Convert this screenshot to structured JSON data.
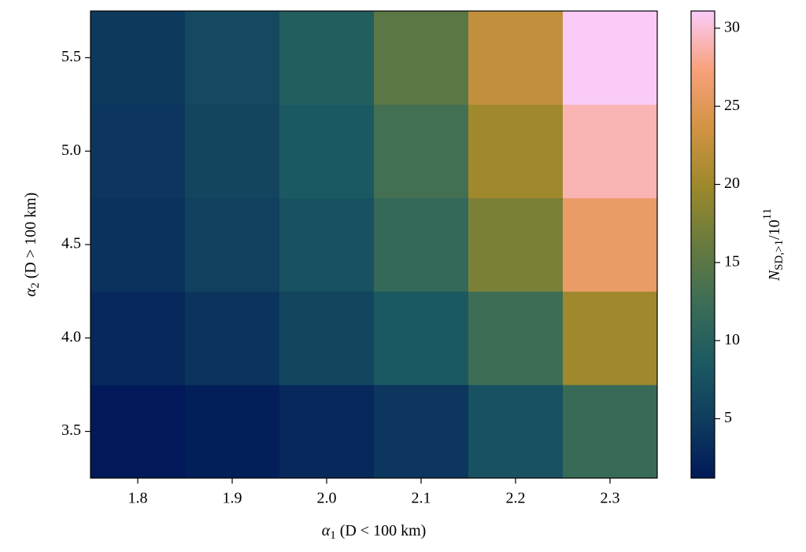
{
  "chart_data": {
    "type": "heatmap",
    "x": [
      1.8,
      1.9,
      2.0,
      2.1,
      2.2,
      2.3
    ],
    "y": [
      3.5,
      4.0,
      4.5,
      5.0,
      5.5
    ],
    "z": [
      [
        1.2,
        1.8,
        2.8,
        4.2,
        7.5,
        12
      ],
      [
        2.8,
        4.0,
        6.0,
        8.5,
        12.5,
        20
      ],
      [
        3.8,
        5.5,
        7.5,
        11.5,
        17.5,
        26
      ],
      [
        4.2,
        6.0,
        8.5,
        13,
        20,
        29
      ],
      [
        4.5,
        6.5,
        9.5,
        15,
        22.5,
        31
      ]
    ],
    "xlim": [
      1.75,
      2.35
    ],
    "ylim": [
      3.25,
      5.75
    ],
    "xticks": [
      1.8,
      1.9,
      {
        "value": 2.0,
        "label": "2.0"
      },
      2.1,
      2.2,
      2.3
    ],
    "yticks": [
      3.5,
      {
        "value": 4.0,
        "label": "4.0"
      },
      4.5,
      {
        "value": 5.0,
        "label": "5.0"
      },
      5.5
    ],
    "xlabel": {
      "symbol": "α",
      "sub": "1",
      "rest": "(D < 100 km)"
    },
    "ylabel": {
      "symbol": "α",
      "sub": "2",
      "rest": "(D > 100 km)"
    },
    "colorbar": {
      "clim": [
        1.2,
        31.1
      ],
      "ticks": [
        5,
        10,
        15,
        20,
        25,
        30
      ],
      "label": {
        "base": "N",
        "sub": "SD,>1",
        "rest": "/10",
        "sup": "11"
      }
    },
    "colormap": [
      "#011959",
      "#0f3d5e",
      "#1c5a62",
      "#3c6d56",
      "#687b3e",
      "#9d892b",
      "#d29343",
      "#f8a17b",
      "#faccfa"
    ]
  }
}
